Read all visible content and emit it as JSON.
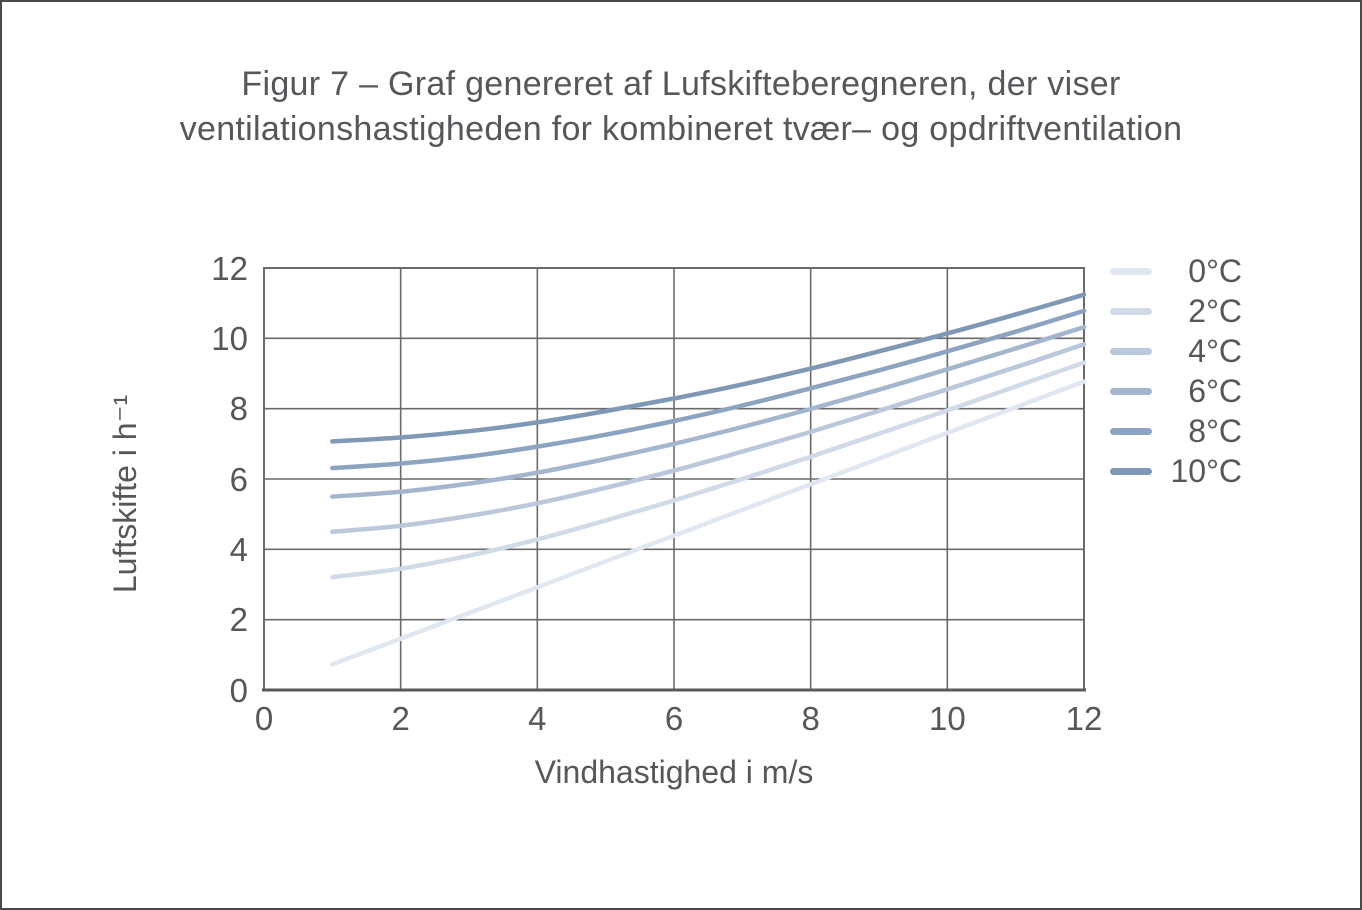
{
  "figure": {
    "title_line1": "Figur 7 – Graf genereret af Lufskifteberegneren, der viser",
    "title_line2": "ventilationshastigheden for kombineret tvær– og opdriftventilation"
  },
  "colors": {
    "text": "#56575b",
    "grid": "#6a6a6a",
    "plot_border": "#6a6a6a",
    "bottom_axis": "#58595b",
    "page_border": "#4a4a4b",
    "background": "#ffffff"
  },
  "chart_data": {
    "type": "line",
    "title": "Figur 7 – Graf genereret af Lufskifteberegneren, der viser ventilationshastigheden for kombineret tvær– og opdriftventilation",
    "xlabel": "Vindhastighed i m/s",
    "ylabel": "Luftskifte i h⁻¹",
    "xlim": [
      0,
      12
    ],
    "ylim": [
      0,
      12
    ],
    "xticks": [
      0,
      2,
      4,
      6,
      8,
      10,
      12
    ],
    "yticks": [
      0,
      2,
      4,
      6,
      8,
      10,
      12
    ],
    "grid": true,
    "legend_position": "right",
    "x": [
      1,
      2,
      3,
      4,
      5,
      6,
      7,
      8,
      9,
      10,
      11,
      12
    ],
    "series": [
      {
        "name": "0°C",
        "color": "#e1e7f0",
        "values": [
          0.73,
          1.46,
          2.19,
          2.92,
          3.66,
          4.39,
          5.12,
          5.85,
          6.58,
          7.31,
          8.04,
          8.77
        ]
      },
      {
        "name": "2°C",
        "color": "#d1dae7",
        "values": [
          3.21,
          3.45,
          3.82,
          4.28,
          4.82,
          5.39,
          6.0,
          6.63,
          7.29,
          7.95,
          8.63,
          9.31
        ]
      },
      {
        "name": "4°C",
        "color": "#bbc8db",
        "values": [
          4.5,
          4.67,
          4.95,
          5.31,
          5.75,
          6.24,
          6.78,
          7.34,
          7.94,
          8.55,
          9.18,
          9.83
        ]
      },
      {
        "name": "6°C",
        "color": "#a4b6ce",
        "values": [
          5.5,
          5.64,
          5.87,
          6.18,
          6.57,
          7.0,
          7.48,
          7.99,
          8.54,
          9.12,
          9.71,
          10.32
        ]
      },
      {
        "name": "8°C",
        "color": "#8ca4c1",
        "values": [
          6.31,
          6.44,
          6.64,
          6.92,
          7.26,
          7.65,
          8.09,
          8.58,
          9.09,
          9.63,
          10.19,
          10.78
        ]
      },
      {
        "name": "10°C",
        "color": "#7e98b6",
        "values": [
          7.07,
          7.18,
          7.36,
          7.61,
          7.93,
          8.29,
          8.69,
          9.14,
          9.63,
          10.14,
          10.68,
          11.24
        ]
      }
    ]
  }
}
